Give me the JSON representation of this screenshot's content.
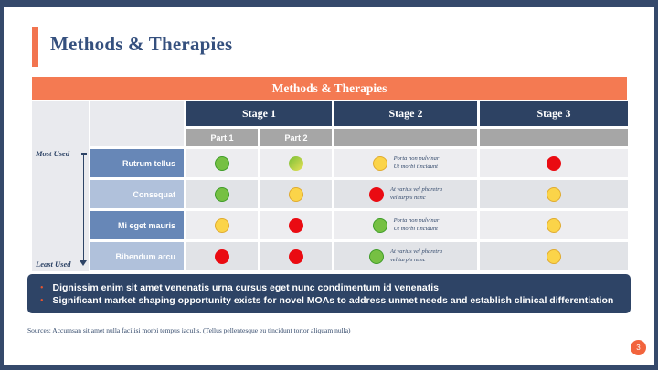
{
  "slide": {
    "title": "Methods & Therapies",
    "banner_title": "Methods & Therapies",
    "page_number": "3",
    "source_text": "Sources: Accumsan sit amet nulla facilisi morbi tempus iaculis. (Tellus pellentesque eu tincidunt tortor aliquam nulla)"
  },
  "table": {
    "stage_headers": [
      "Stage 1",
      "Stage 2",
      "Stage 3"
    ],
    "part_headers": [
      "Part 1",
      "Part 2"
    ],
    "axis": {
      "top": "Most Used",
      "bottom": "Least Used"
    },
    "rows": [
      {
        "label": "Rutrum tellus",
        "part1_dot": "green",
        "part2_dot": "lime",
        "stage2_dot": "yellow",
        "stage2_note": [
          "Porta non pulvinar",
          "Ut morbi tincidunt"
        ],
        "stage3_dot": "red"
      },
      {
        "label": "Consequat",
        "part1_dot": "green",
        "part2_dot": "yellow",
        "stage2_dot": "red",
        "stage2_note": [
          "At varius vel pharetra",
          "vel turpis nunc"
        ],
        "stage3_dot": "yellow"
      },
      {
        "label": "Mi eget mauris",
        "part1_dot": "yellow",
        "part2_dot": "red",
        "stage2_dot": "green",
        "stage2_note": [
          "Porta non pulvinar",
          "Ut morbi tincidunt"
        ],
        "stage3_dot": "yellow"
      },
      {
        "label": "Bibendum arcu",
        "part1_dot": "red",
        "part2_dot": "red",
        "stage2_dot": "green",
        "stage2_note": [
          "At varius vel pharetra",
          "vel turpis nunc"
        ],
        "stage3_dot": "yellow"
      }
    ]
  },
  "callout": {
    "bullets": [
      "Dignissim enim sit amet venenatis urna cursus eget nunc condimentum id venenatis",
      "Significant  market shaping opportunity exists for novel MOAs  to address unmet needs and establish clinical differentiation"
    ]
  },
  "colors": {
    "frame_navy": "#35496b",
    "header_navy": "#2d4263",
    "callout_navy": "#2e4466",
    "accent_orange": "#f2744f",
    "banner_orange": "#f47a52",
    "dot_green": "#76c043",
    "dot_yellow": "#fbd449",
    "dot_red": "#ea0b12",
    "label_blue_dark": "#6787b7",
    "label_blue_light": "#b0c1db"
  }
}
